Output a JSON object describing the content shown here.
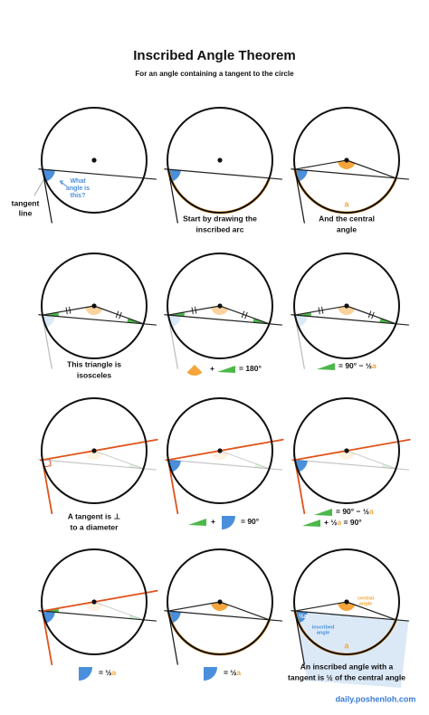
{
  "header": {
    "title": "Inscribed Angle Theorem",
    "subtitle": "For an angle containing a tangent to the circle"
  },
  "panels": [
    {
      "tangent_label": [
        "tangent",
        "line"
      ],
      "question": [
        "What",
        "angle is",
        "this?"
      ]
    },
    {
      "caption": [
        "Start by drawing the",
        "inscribed arc"
      ]
    },
    {
      "caption": [
        "And the central",
        "angle"
      ],
      "arc_label": "a"
    },
    {
      "caption": [
        "This triangle is",
        "isosceles"
      ]
    },
    {
      "formula": [
        [
          "+",
          "= 180°"
        ]
      ]
    },
    {
      "formula": [
        [
          "= 90° − ½",
          "a"
        ]
      ]
    },
    {
      "caption": [
        "A tangent is ⊥",
        "to a diameter"
      ]
    },
    {
      "formula": [
        [
          "+",
          "= 90°"
        ]
      ]
    },
    {
      "formula": [
        [
          "= 90° − ½",
          "a"
        ],
        [
          "+ ½",
          "a",
          " = 90°"
        ]
      ]
    },
    {
      "formula": [
        [
          "= ½",
          "a"
        ]
      ]
    },
    {
      "formula": [
        [
          "= ½",
          "a"
        ]
      ]
    },
    {
      "central_label": [
        "central",
        "angle"
      ],
      "inscribed_label": [
        "inscribed",
        "angle"
      ],
      "inscribed_value": [
        "½",
        "a"
      ],
      "arc_label": "a",
      "caption": [
        "An inscribed angle with a",
        "tangent is ½ of the central angle"
      ]
    }
  ],
  "footer": "daily.poshenloh.com"
}
